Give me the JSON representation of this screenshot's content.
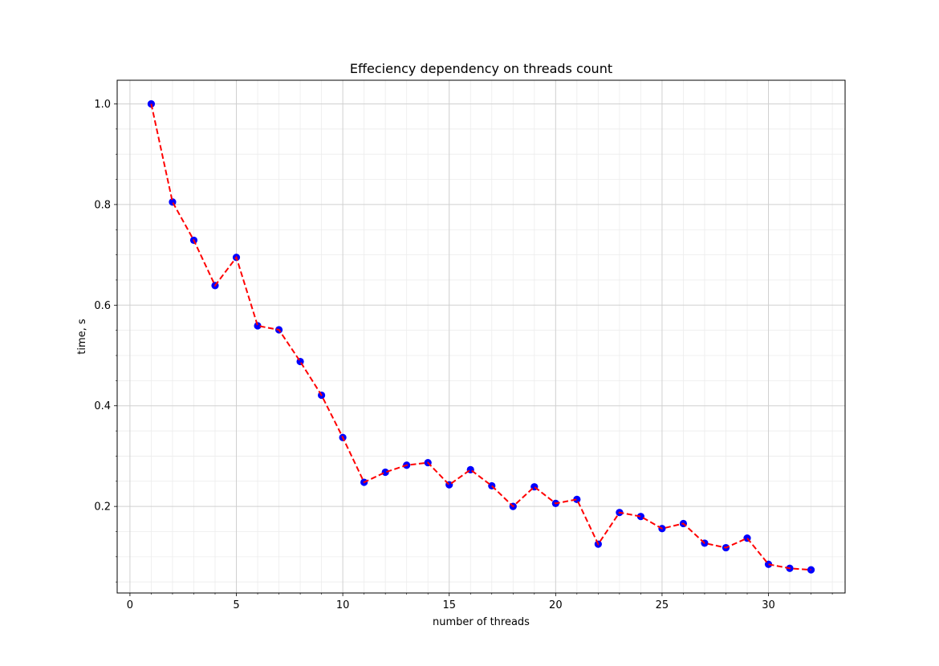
{
  "chart_data": {
    "type": "line",
    "title": "Effeciency dependency on threads count",
    "xlabel": "number of threads",
    "ylabel": "time, s",
    "xlim": [
      -0.6,
      33.6
    ],
    "ylim": [
      0.028,
      1.047
    ],
    "xticks": [
      0,
      5,
      10,
      15,
      20,
      25,
      30
    ],
    "xtick_labels": [
      "0",
      "5",
      "10",
      "15",
      "20",
      "25",
      "30"
    ],
    "yticks": [
      0.2,
      0.4,
      0.6,
      0.8,
      1.0
    ],
    "ytick_labels": [
      "0.2",
      "0.4",
      "0.6",
      "0.8",
      "1.0"
    ],
    "grid": true,
    "series": [
      {
        "line_color": "#ff0000",
        "marker_color": "#0000ff",
        "line_style": "dashed",
        "x": [
          1,
          2,
          3,
          4,
          5,
          6,
          7,
          8,
          9,
          10,
          11,
          12,
          13,
          14,
          15,
          16,
          17,
          18,
          19,
          20,
          21,
          22,
          23,
          24,
          25,
          26,
          27,
          28,
          29,
          30,
          31,
          32
        ],
        "y": [
          1.0,
          0.805,
          0.729,
          0.639,
          0.695,
          0.559,
          0.551,
          0.488,
          0.421,
          0.337,
          0.248,
          0.268,
          0.282,
          0.287,
          0.243,
          0.273,
          0.241,
          0.2,
          0.239,
          0.206,
          0.214,
          0.125,
          0.188,
          0.18,
          0.156,
          0.166,
          0.127,
          0.118,
          0.137,
          0.085,
          0.077,
          0.074
        ]
      }
    ]
  }
}
